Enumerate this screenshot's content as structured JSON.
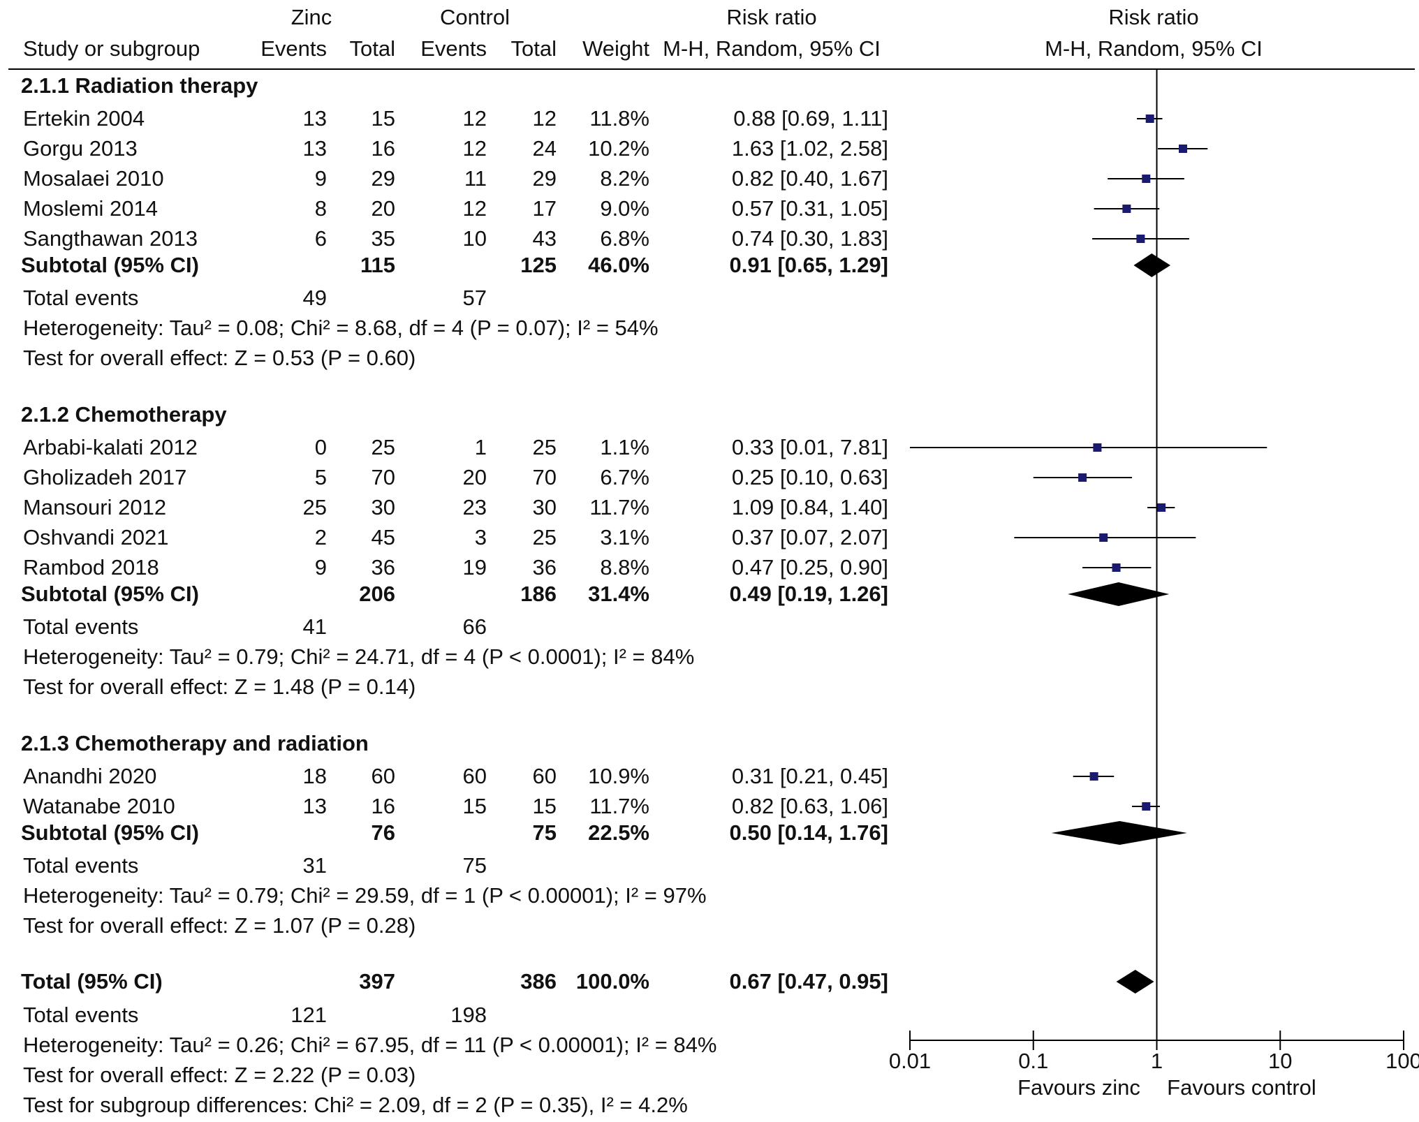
{
  "header": {
    "group_zinc": "Zinc",
    "group_control": "Control",
    "study_col": "Study or subgroup",
    "events": "Events",
    "total": "Total",
    "weight": "Weight",
    "rr_title": "Risk ratio",
    "rr_method": "M-H, Random, 95% CI",
    "plot_title": "Risk ratio",
    "plot_method": "M-H, Random, 95% CI"
  },
  "subgroups": [
    {
      "title": "2.1.1 Radiation therapy",
      "studies": [
        {
          "name": "Ertekin 2004",
          "ze": "13",
          "zt": "15",
          "ce": "12",
          "ct": "12",
          "w": "11.8%",
          "ci": "0.88 [0.69, 1.11]",
          "rr": 0.88,
          "lo": 0.69,
          "hi": 1.11
        },
        {
          "name": "Gorgu 2013",
          "ze": "13",
          "zt": "16",
          "ce": "12",
          "ct": "24",
          "w": "10.2%",
          "ci": "1.63 [1.02, 2.58]",
          "rr": 1.63,
          "lo": 1.02,
          "hi": 2.58
        },
        {
          "name": "Mosalaei 2010",
          "ze": "9",
          "zt": "29",
          "ce": "11",
          "ct": "29",
          "w": "8.2%",
          "ci": "0.82 [0.40, 1.67]",
          "rr": 0.82,
          "lo": 0.4,
          "hi": 1.67
        },
        {
          "name": "Moslemi 2014",
          "ze": "8",
          "zt": "20",
          "ce": "12",
          "ct": "17",
          "w": "9.0%",
          "ci": "0.57 [0.31, 1.05]",
          "rr": 0.57,
          "lo": 0.31,
          "hi": 1.05
        },
        {
          "name": "Sangthawan 2013",
          "ze": "6",
          "zt": "35",
          "ce": "10",
          "ct": "43",
          "w": "6.8%",
          "ci": "0.74 [0.30, 1.83]",
          "rr": 0.74,
          "lo": 0.3,
          "hi": 1.83
        }
      ],
      "subtotal": {
        "label": "Subtotal (95% CI)",
        "zt": "115",
        "ct": "125",
        "w": "46.0%",
        "ci": "0.91 [0.65, 1.29]",
        "rr": 0.91,
        "lo": 0.65,
        "hi": 1.29
      },
      "events_label": "Total events",
      "events_z": "49",
      "events_c": "57",
      "heterogeneity": "Heterogeneity: Tau² = 0.08; Chi² = 8.68, df = 4 (P = 0.07); I² = 54%",
      "overall": "Test for overall effect: Z = 0.53 (P = 0.60)"
    },
    {
      "title": "2.1.2 Chemotherapy",
      "studies": [
        {
          "name": "Arbabi-kalati 2012",
          "ze": "0",
          "zt": "25",
          "ce": "1",
          "ct": "25",
          "w": "1.1%",
          "ci": "0.33 [0.01, 7.81]",
          "rr": 0.33,
          "lo": 0.01,
          "hi": 7.81
        },
        {
          "name": "Gholizadeh 2017",
          "ze": "5",
          "zt": "70",
          "ce": "20",
          "ct": "70",
          "w": "6.7%",
          "ci": "0.25 [0.10, 0.63]",
          "rr": 0.25,
          "lo": 0.1,
          "hi": 0.63
        },
        {
          "name": "Mansouri 2012",
          "ze": "25",
          "zt": "30",
          "ce": "23",
          "ct": "30",
          "w": "11.7%",
          "ci": "1.09 [0.84, 1.40]",
          "rr": 1.09,
          "lo": 0.84,
          "hi": 1.4
        },
        {
          "name": "Oshvandi 2021",
          "ze": "2",
          "zt": "45",
          "ce": "3",
          "ct": "25",
          "w": "3.1%",
          "ci": "0.37 [0.07, 2.07]",
          "rr": 0.37,
          "lo": 0.07,
          "hi": 2.07
        },
        {
          "name": "Rambod 2018",
          "ze": "9",
          "zt": "36",
          "ce": "19",
          "ct": "36",
          "w": "8.8%",
          "ci": "0.47 [0.25, 0.90]",
          "rr": 0.47,
          "lo": 0.25,
          "hi": 0.9
        }
      ],
      "subtotal": {
        "label": "Subtotal (95% CI)",
        "zt": "206",
        "ct": "186",
        "w": "31.4%",
        "ci": "0.49 [0.19, 1.26]",
        "rr": 0.49,
        "lo": 0.19,
        "hi": 1.26
      },
      "events_label": "Total events",
      "events_z": "41",
      "events_c": "66",
      "heterogeneity": "Heterogeneity: Tau² = 0.79; Chi² = 24.71, df = 4 (P < 0.0001); I² = 84%",
      "overall": "Test for overall effect: Z = 1.48 (P = 0.14)"
    },
    {
      "title": "2.1.3 Chemotherapy and radiation",
      "studies": [
        {
          "name": "Anandhi 2020",
          "ze": "18",
          "zt": "60",
          "ce": "60",
          "ct": "60",
          "w": "10.9%",
          "ci": "0.31 [0.21, 0.45]",
          "rr": 0.31,
          "lo": 0.21,
          "hi": 0.45
        },
        {
          "name": "Watanabe 2010",
          "ze": "13",
          "zt": "16",
          "ce": "15",
          "ct": "15",
          "w": "11.7%",
          "ci": "0.82 [0.63, 1.06]",
          "rr": 0.82,
          "lo": 0.63,
          "hi": 1.06
        }
      ],
      "subtotal": {
        "label": "Subtotal (95% CI)",
        "zt": "76",
        "ct": "75",
        "w": "22.5%",
        "ci": "0.50 [0.14, 1.76]",
        "rr": 0.5,
        "lo": 0.14,
        "hi": 1.76
      },
      "events_label": "Total events",
      "events_z": "31",
      "events_c": "75",
      "heterogeneity": "Heterogeneity: Tau² = 0.79; Chi² = 29.59, df = 1 (P < 0.00001); I² = 97%",
      "overall": "Test for overall effect: Z = 1.07 (P = 0.28)"
    }
  ],
  "total": {
    "label": "Total (95% CI)",
    "zt": "397",
    "ct": "386",
    "w": "100.0%",
    "ci": "0.67 [0.47, 0.95]",
    "rr": 0.67,
    "lo": 0.47,
    "hi": 0.95,
    "events_label": "Total events",
    "events_z": "121",
    "events_c": "198",
    "heterogeneity": "Heterogeneity: Tau² = 0.26; Chi² = 67.95, df = 11 (P < 0.00001); I² = 84%",
    "overall": "Test for overall effect: Z = 2.22 (P = 0.03)",
    "subgroup_diff": "Test for subgroup differences: Chi² = 2.09, df = 2 (P = 0.35), I² = 4.2%"
  },
  "axis": {
    "ticks": [
      "0.01",
      "0.1",
      "1",
      "10",
      "100"
    ],
    "tick_values": [
      0.01,
      0.1,
      1,
      10,
      100
    ],
    "scale": "log",
    "favours_left": "Favours zinc",
    "favours_right": "Favours control"
  },
  "colors": {
    "marker": "#1a1a6e",
    "line": "#000000",
    "diamond": "#000000"
  },
  "chart_data": {
    "type": "forest",
    "scale": "log",
    "xlim": [
      0.01,
      100
    ],
    "xticks": [
      0.01,
      0.1,
      1,
      10,
      100
    ],
    "reference_line": 1,
    "title": "Risk ratio",
    "subtitle": "M-H, Random, 95% CI",
    "xlabel_left": "Favours zinc",
    "xlabel_right": "Favours control"
  }
}
